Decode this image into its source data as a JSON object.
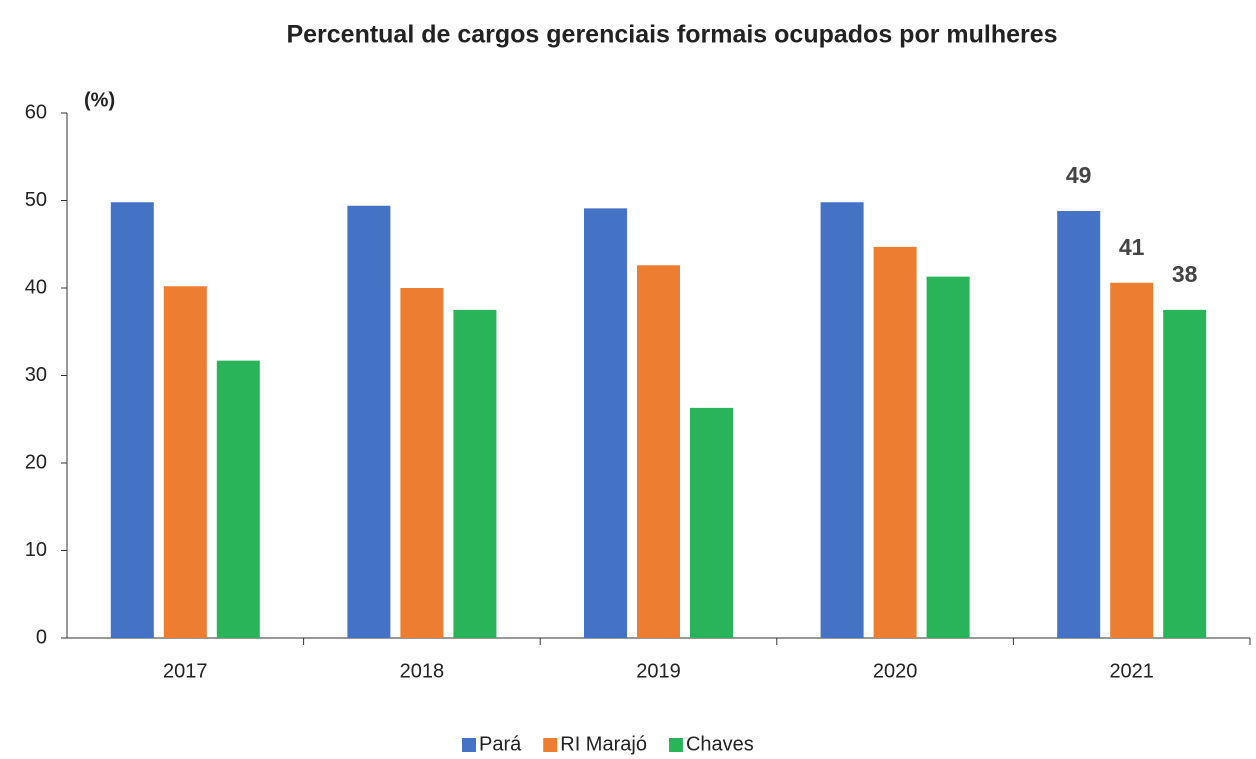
{
  "chart_data": {
    "type": "bar",
    "title": "Percentual de cargos gerenciais formais ocupados por mulheres",
    "y_label": "(%)",
    "categories": [
      "2017",
      "2018",
      "2019",
      "2020",
      "2021"
    ],
    "series": [
      {
        "name": "Pará",
        "color": "#4472c4",
        "values": [
          49.8,
          49.4,
          49.1,
          49.8,
          48.8
        ],
        "value_labels": [
          null,
          null,
          null,
          null,
          "49"
        ]
      },
      {
        "name": "RI Marajó",
        "color": "#ed7d31",
        "values": [
          40.2,
          40.0,
          42.6,
          44.7,
          40.6
        ],
        "value_labels": [
          null,
          null,
          null,
          null,
          "41"
        ]
      },
      {
        "name": "Chaves",
        "color": "#2ab45a",
        "values": [
          31.7,
          37.5,
          26.3,
          41.3,
          37.5
        ],
        "value_labels": [
          null,
          null,
          null,
          null,
          "38"
        ]
      }
    ],
    "ylim": [
      0,
      60
    ],
    "yticks": [
      0,
      10,
      20,
      30,
      40,
      50,
      60
    ],
    "grid": false,
    "legend": "bottom"
  }
}
